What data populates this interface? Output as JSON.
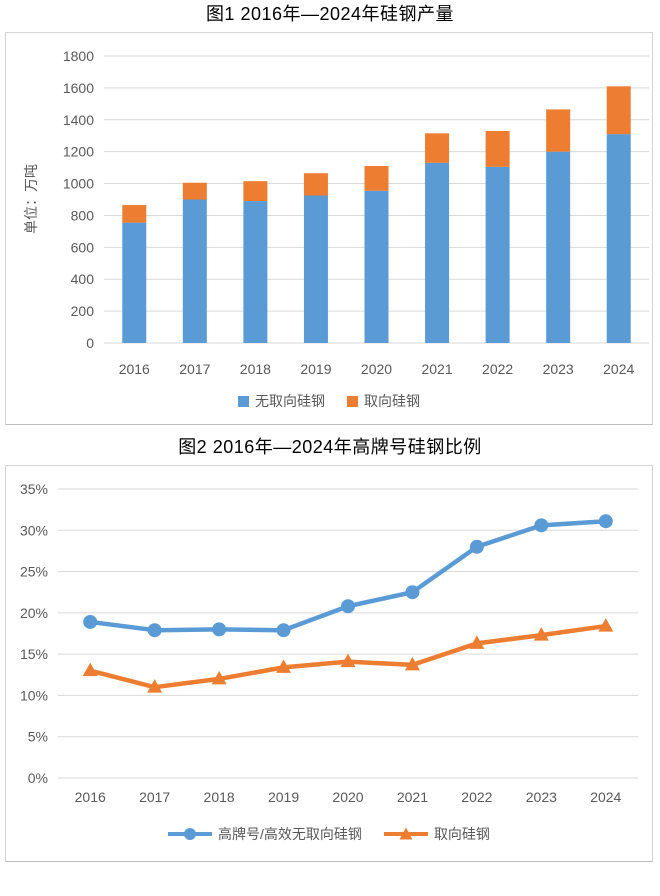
{
  "figures": [
    {
      "title": "图1 2016年—2024年硅钢产量",
      "y_axis_title": "单位：万吨"
    },
    {
      "title": "图2 2016年—2024年高牌号硅钢比例"
    }
  ],
  "chart_data": [
    {
      "type": "bar",
      "stacked": true,
      "title": "图1 2016年—2024年硅钢产量",
      "categories": [
        "2016",
        "2017",
        "2018",
        "2019",
        "2020",
        "2021",
        "2022",
        "2023",
        "2024"
      ],
      "series": [
        {
          "name": "无取向硅钢",
          "color": "#5B9BD5",
          "values": [
            755,
            900,
            890,
            925,
            955,
            1130,
            1105,
            1200,
            1310
          ]
        },
        {
          "name": "取向硅钢",
          "color": "#ED7D31",
          "values": [
            110,
            105,
            125,
            140,
            155,
            185,
            225,
            265,
            300
          ]
        }
      ],
      "xlabel": "",
      "ylabel": "单位：万吨",
      "ylim": [
        0,
        1800
      ],
      "ytick_step": 200,
      "grid": true,
      "legend_position": "bottom"
    },
    {
      "type": "line",
      "title": "图2 2016年—2024年高牌号硅钢比例",
      "categories": [
        "2016",
        "2017",
        "2018",
        "2019",
        "2020",
        "2021",
        "2022",
        "2023",
        "2024"
      ],
      "series": [
        {
          "name": "高牌号/高效无取向硅钢",
          "color": "#5B9BD5",
          "marker": "circle",
          "values": [
            18.9,
            17.9,
            18.0,
            17.9,
            20.8,
            22.5,
            28.0,
            30.6,
            31.1
          ]
        },
        {
          "name": "取向硅钢",
          "color": "#ED7D31",
          "marker": "triangle",
          "values": [
            13.0,
            11.0,
            12.0,
            13.4,
            14.1,
            13.7,
            16.3,
            17.3,
            18.4
          ]
        }
      ],
      "xlabel": "",
      "ylabel": "",
      "ylim": [
        0,
        35
      ],
      "ytick_step": 5,
      "yformat": "percent",
      "grid": true,
      "legend_position": "bottom"
    }
  ],
  "colors": {
    "series_blue": "#5B9BD5",
    "series_orange": "#ED7D31",
    "gridline": "#D9D9D9",
    "axis_text": "#595959",
    "title_text": "#000000",
    "chart_border": "#D4D4D4"
  }
}
